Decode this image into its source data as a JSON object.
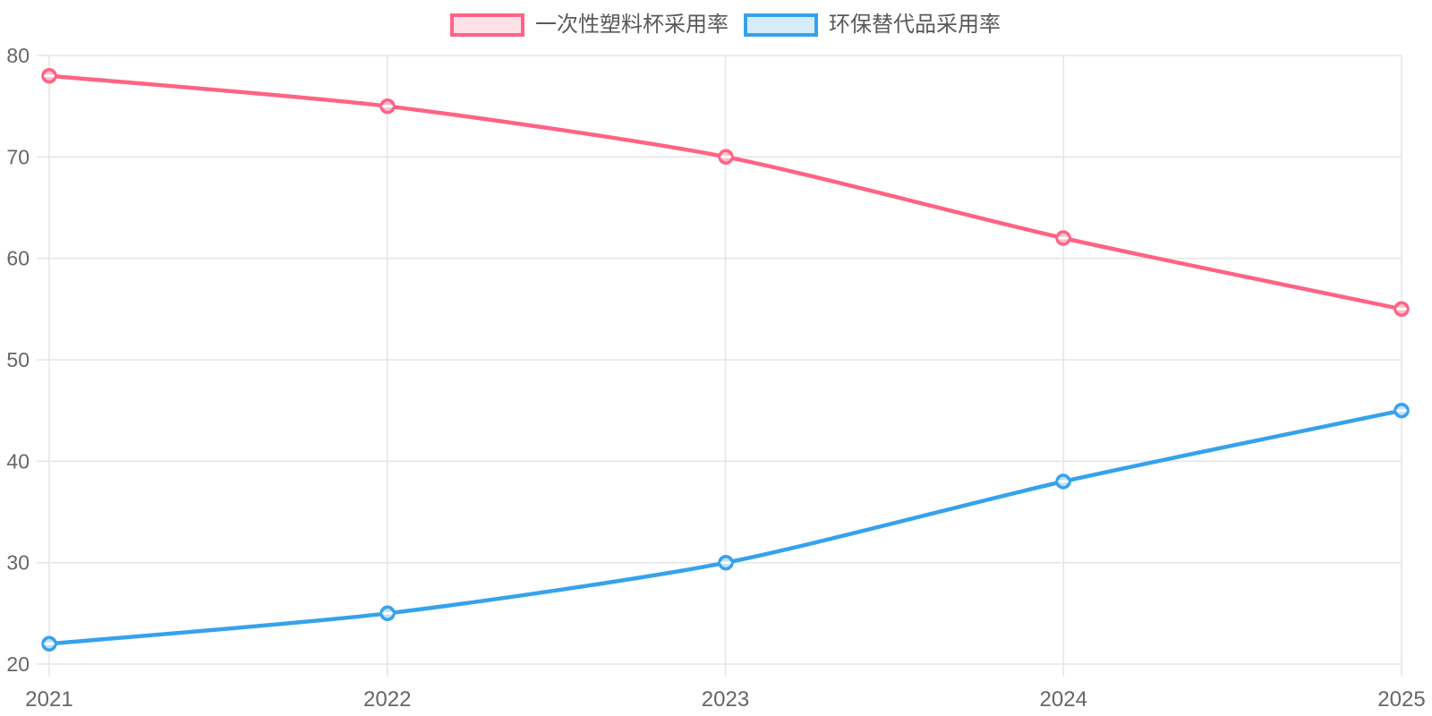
{
  "chart_data": {
    "type": "line",
    "categories": [
      "2021",
      "2022",
      "2023",
      "2024",
      "2025"
    ],
    "series": [
      {
        "name": "一次性塑料杯采用率",
        "values": [
          78,
          75,
          70,
          62,
          55
        ],
        "color": "#FF6384",
        "fill_light": "#FFE0E7",
        "point_fill": "#F9BECD"
      },
      {
        "name": "环保替代品采用率",
        "values": [
          22,
          25,
          30,
          38,
          45
        ],
        "color": "#36A2EB",
        "fill_light": "#D7ECFB",
        "point_fill": "#BFE0F9"
      }
    ],
    "title": "",
    "xlabel": "",
    "ylabel": "",
    "ylim": [
      20,
      80
    ],
    "y_tick_step": 10,
    "y_ticks": [
      20,
      30,
      40,
      50,
      60,
      70,
      80
    ],
    "grid": true,
    "legend_position": "top",
    "axis_text_color": "#666666",
    "grid_color": "#E6E6E6",
    "point_dash_color": "#FFFFFF"
  }
}
